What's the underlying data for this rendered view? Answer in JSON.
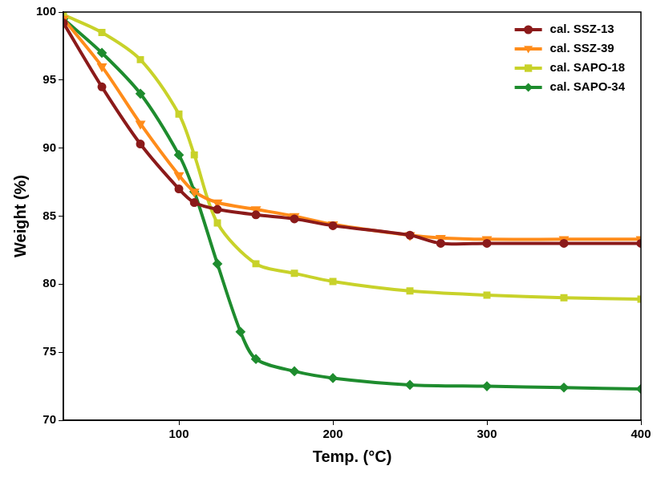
{
  "chart_data": {
    "type": "line",
    "x_label": "Temp. (°C)",
    "y_label": "Weight (%)",
    "xlim": [
      25,
      400
    ],
    "xticks": [
      100,
      200,
      300,
      400
    ],
    "ylim": [
      70,
      100
    ],
    "yticks": [
      70,
      75,
      80,
      85,
      90,
      95,
      100
    ],
    "grid": false,
    "legend": "top-right",
    "series": [
      {
        "name": "cal. SSZ-13",
        "color": "#8b1a1a",
        "marker": "circle",
        "x": [
          25,
          50,
          75,
          100,
          110,
          125,
          150,
          175,
          200,
          250,
          270,
          300,
          350,
          400
        ],
        "values": [
          99.2,
          94.5,
          90.3,
          87.0,
          86.0,
          85.5,
          85.1,
          84.8,
          84.3,
          83.6,
          83.0,
          83.0,
          83.0,
          83.0
        ]
      },
      {
        "name": "cal. SSZ-39",
        "color": "#ff8c1a",
        "marker": "triangle_down",
        "x": [
          25,
          50,
          75,
          100,
          110,
          125,
          150,
          175,
          200,
          250,
          270,
          300,
          350,
          400
        ],
        "values": [
          99.5,
          96.0,
          91.8,
          88.0,
          86.8,
          86.0,
          85.5,
          85.0,
          84.4,
          83.6,
          83.4,
          83.3,
          83.3,
          83.3
        ]
      },
      {
        "name": "cal. SAPO-18",
        "color": "#c8d22a",
        "marker": "square",
        "x": [
          25,
          50,
          75,
          100,
          110,
          125,
          150,
          175,
          200,
          250,
          300,
          350,
          400
        ],
        "values": [
          99.8,
          98.5,
          96.5,
          92.5,
          89.5,
          84.5,
          81.5,
          80.8,
          80.2,
          79.5,
          79.2,
          79.0,
          78.9
        ]
      },
      {
        "name": "cal. SAPO-34",
        "color": "#1e8c2e",
        "marker": "diamond",
        "x": [
          25,
          50,
          75,
          100,
          110,
          125,
          140,
          150,
          175,
          200,
          250,
          300,
          350,
          400
        ],
        "values": [
          99.5,
          97.0,
          94.0,
          89.5,
          86.8,
          81.5,
          76.5,
          74.5,
          73.6,
          73.1,
          72.6,
          72.5,
          72.4,
          72.3
        ]
      }
    ]
  }
}
